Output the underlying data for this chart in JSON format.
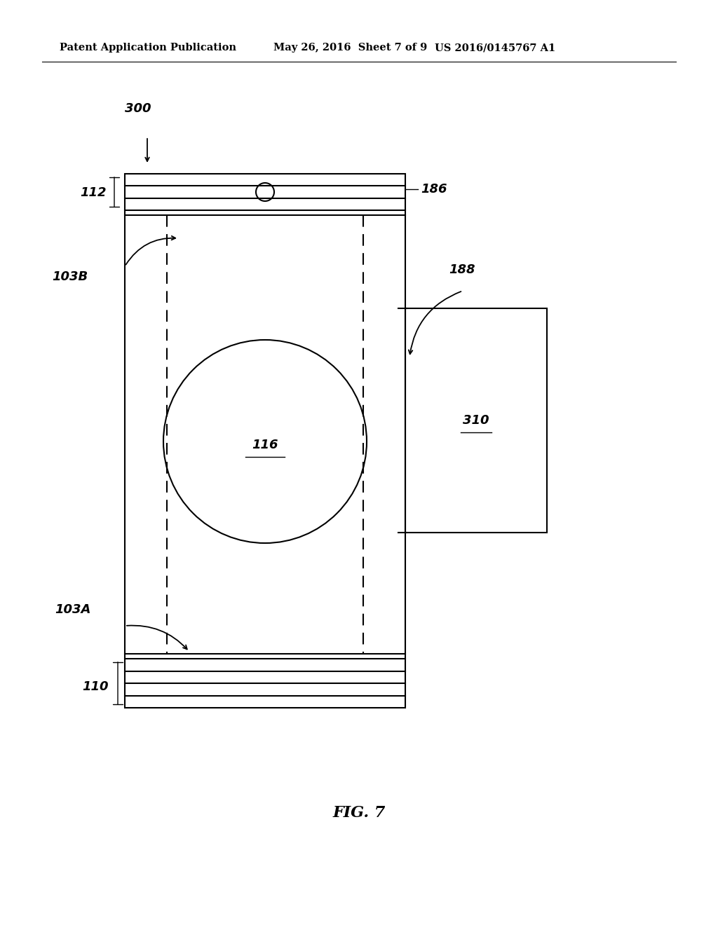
{
  "header_left": "Patent Application Publication",
  "header_mid": "May 26, 2016  Sheet 7 of 9",
  "header_right": "US 2016/0145767 A1",
  "fig_label": "FIG. 7",
  "label_300": "300",
  "label_186": "186",
  "label_112": "112",
  "label_103B": "103B",
  "label_188": "188",
  "label_116": "116",
  "label_310": "310",
  "label_103A": "103A",
  "label_110": "110",
  "bg_color": "#ffffff",
  "line_color": "#000000"
}
